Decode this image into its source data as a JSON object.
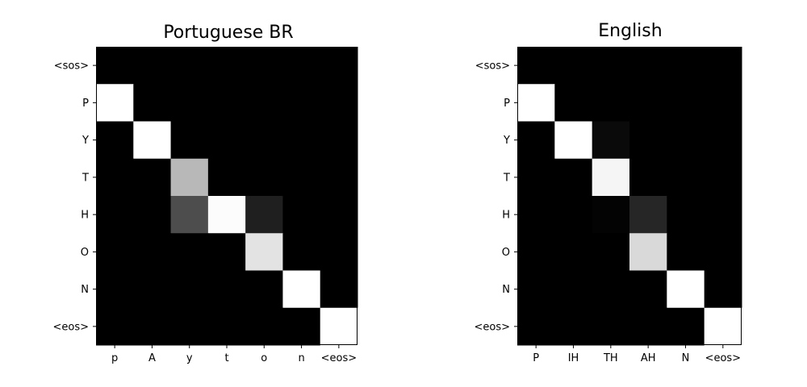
{
  "chart_data": [
    {
      "type": "heatmap",
      "title": "Portuguese BR",
      "colormap": "gray",
      "value_range": [
        0,
        1
      ],
      "rows": [
        "<sos>",
        "P",
        "Y",
        "T",
        "H",
        "O",
        "N",
        "<eos>"
      ],
      "columns": [
        "p",
        "A",
        "y",
        "t",
        "o",
        "n",
        "<eos>"
      ],
      "values": [
        [
          0,
          0,
          0,
          0,
          0,
          0,
          0
        ],
        [
          1,
          0,
          0,
          0,
          0,
          0,
          0
        ],
        [
          0,
          1,
          0,
          0,
          0,
          0,
          0
        ],
        [
          0,
          0,
          0.72,
          0,
          0,
          0,
          0
        ],
        [
          0,
          0,
          0.3,
          0.99,
          0.12,
          0,
          0
        ],
        [
          0,
          0,
          0,
          0,
          0.89,
          0,
          0
        ],
        [
          0,
          0,
          0,
          0,
          0,
          1,
          0
        ],
        [
          0,
          0,
          0,
          0,
          0,
          0,
          1
        ]
      ]
    },
    {
      "type": "heatmap",
      "title": "English",
      "colormap": "gray",
      "value_range": [
        0,
        1
      ],
      "rows": [
        "<sos>",
        "P",
        "Y",
        "T",
        "H",
        "O",
        "N",
        "<eos>"
      ],
      "columns": [
        "P",
        "IH",
        "TH",
        "AH",
        "N",
        "<eos>"
      ],
      "values": [
        [
          0,
          0,
          0,
          0,
          0,
          0
        ],
        [
          1,
          0,
          0,
          0,
          0,
          0
        ],
        [
          0,
          1,
          0.04,
          0,
          0,
          0
        ],
        [
          0,
          0,
          0.96,
          0,
          0,
          0
        ],
        [
          0,
          0,
          0.01,
          0.15,
          0,
          0
        ],
        [
          0,
          0,
          0,
          0.85,
          0,
          0
        ],
        [
          0,
          0,
          0,
          0,
          1,
          0
        ],
        [
          0,
          0,
          0,
          0,
          0,
          1
        ]
      ]
    }
  ]
}
